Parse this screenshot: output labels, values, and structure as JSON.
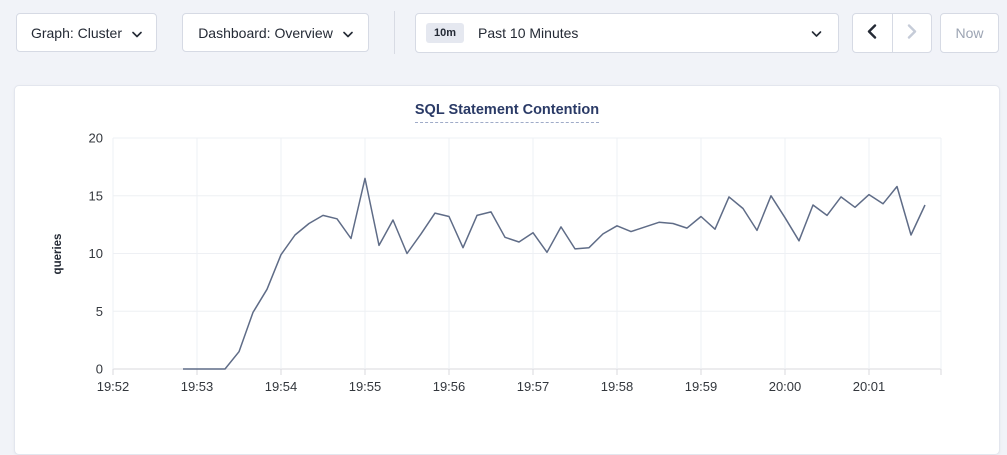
{
  "toolbar": {
    "graph_dropdown": {
      "label": "Graph: Cluster"
    },
    "dashboard_dropdown": {
      "label": "Dashboard: Overview"
    },
    "time_selector": {
      "badge": "10m",
      "label": "Past 10 Minutes"
    },
    "now_button": {
      "label": "Now"
    }
  },
  "icons": {
    "graph_dropdown": "chevron-down",
    "dashboard_dropdown": "chevron-down",
    "time_selector": "chevron-down",
    "time_back": "chevron-left",
    "time_forward": "chevron-right"
  },
  "colors": {
    "line": "#5f6c87",
    "grid": "#eef0f4",
    "baseline": "#d8d9de",
    "tick_text": "#33373d",
    "title": "#2a3a66",
    "enabled_arrow": "#242a35",
    "disabled_arrow": "#c6ccd8"
  },
  "chart_data": {
    "type": "line",
    "title": "SQL Statement Contention",
    "xlabel": "",
    "ylabel": "queries",
    "ylim": [
      0,
      20
    ],
    "y_ticks": [
      0,
      5,
      10,
      15,
      20
    ],
    "x_tick_labels": [
      "19:52",
      "19:53",
      "19:54",
      "19:55",
      "19:56",
      "19:57",
      "19:58",
      "19:59",
      "20:00",
      "20:01"
    ],
    "grid": true,
    "legend": "none",
    "series": [
      {
        "name": "queries",
        "color": "#5f6c87",
        "start_time": "19:52:50",
        "interval_seconds": 10,
        "values": [
          0,
          0,
          0,
          0,
          1.5,
          4.9,
          6.9,
          9.9,
          11.6,
          12.6,
          13.3,
          13.0,
          11.3,
          16.5,
          10.7,
          12.9,
          10.0,
          11.7,
          13.5,
          13.2,
          10.5,
          13.3,
          13.6,
          11.4,
          11.0,
          11.8,
          10.1,
          12.3,
          10.4,
          10.5,
          11.7,
          12.4,
          11.9,
          12.3,
          12.7,
          12.6,
          12.2,
          13.2,
          12.1,
          14.9,
          13.9,
          12.0,
          15.0,
          13.1,
          11.1,
          14.2,
          13.3,
          14.9,
          14.0,
          15.1,
          14.3,
          15.8,
          11.6,
          14.2
        ]
      }
    ]
  }
}
